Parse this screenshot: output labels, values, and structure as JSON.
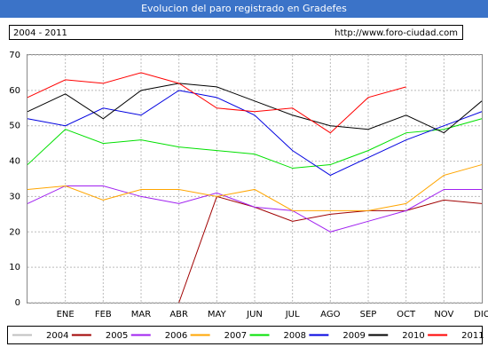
{
  "chart_data": {
    "type": "line",
    "title": "Evolucion del paro registrado en Gradefes",
    "subtitle": "2004 - 2011",
    "source": "http://www.foro-ciudad.com",
    "categories": [
      null,
      "ENE",
      "FEB",
      "MAR",
      "ABR",
      "MAY",
      "JUN",
      "JUL",
      "AGO",
      "SEP",
      "OCT",
      "NOV",
      "DIC"
    ],
    "ylim": [
      0,
      70
    ],
    "yticks": [
      0,
      10,
      20,
      30,
      40,
      50,
      60,
      70
    ],
    "grid": true,
    "series": [
      {
        "name": "2004",
        "color": "#c0c0c0",
        "values": [
          null,
          null,
          null,
          null,
          null,
          null,
          null,
          null,
          null,
          null,
          null,
          null,
          null
        ]
      },
      {
        "name": "2005",
        "color": "#a00000",
        "values": [
          null,
          null,
          null,
          null,
          0,
          30,
          27,
          23,
          25,
          26,
          26,
          29,
          28
        ]
      },
      {
        "name": "2006",
        "color": "#a020f0",
        "values": [
          28,
          33,
          33,
          30,
          28,
          31,
          27,
          26,
          20,
          23,
          26,
          32,
          32
        ]
      },
      {
        "name": "2007",
        "color": "#ffa500",
        "values": [
          32,
          33,
          29,
          32,
          32,
          30,
          32,
          26,
          26,
          26,
          28,
          36,
          39
        ]
      },
      {
        "name": "2008",
        "color": "#00e000",
        "values": [
          39,
          49,
          45,
          46,
          44,
          43,
          42,
          38,
          39,
          43,
          48,
          49,
          52
        ]
      },
      {
        "name": "2009",
        "color": "#0000e0",
        "values": [
          52,
          50,
          55,
          53,
          60,
          58,
          53,
          43,
          36,
          41,
          46,
          50,
          54
        ]
      },
      {
        "name": "2010",
        "color": "#000000",
        "values": [
          54,
          59,
          52,
          60,
          62,
          61,
          57,
          53,
          50,
          49,
          53,
          48,
          57
        ]
      },
      {
        "name": "2011",
        "color": "#ff0000",
        "values": [
          58,
          63,
          62,
          65,
          62,
          55,
          54,
          55,
          48,
          58,
          61,
          null,
          null
        ]
      }
    ]
  }
}
